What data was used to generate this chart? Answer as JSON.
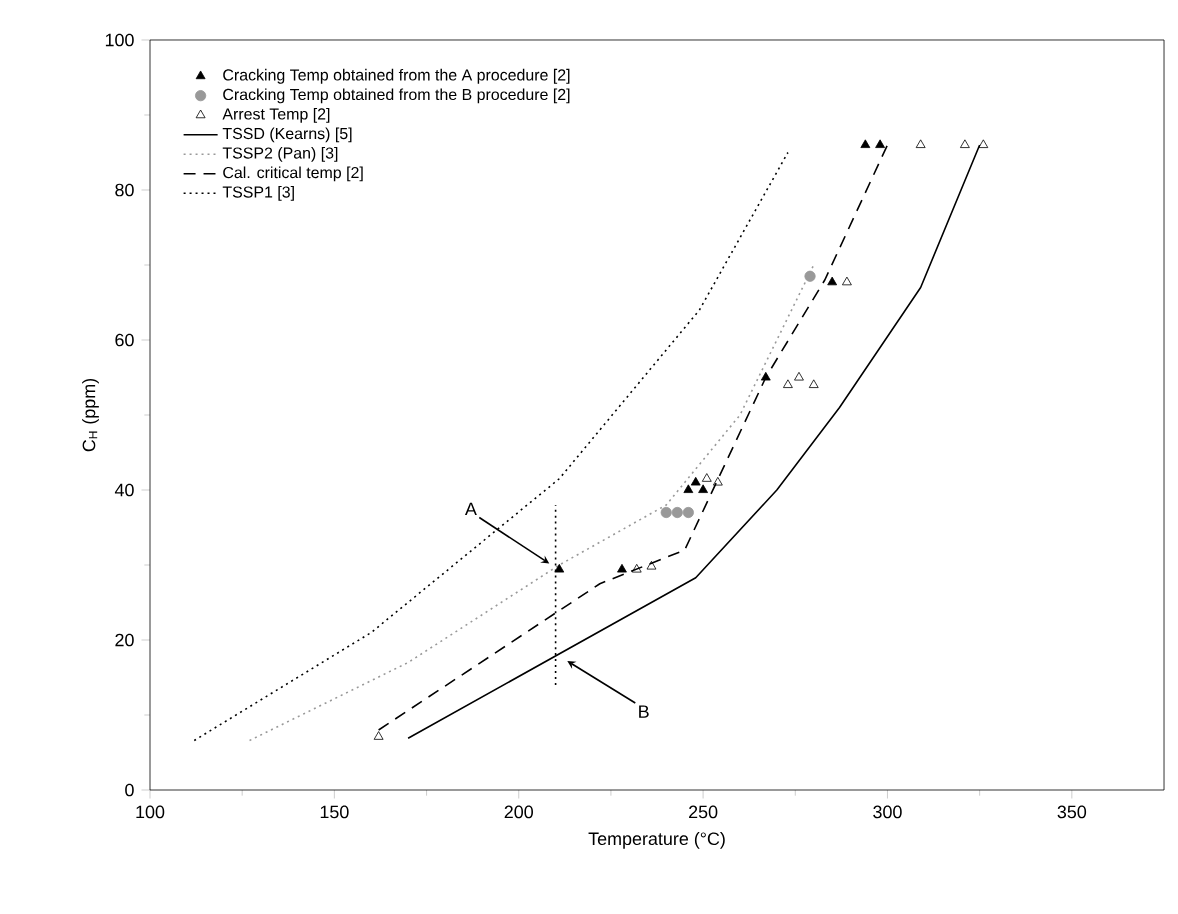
{
  "chart_data": {
    "type": "scatter",
    "xlabel": "Temperature (°C)",
    "ylabel": "C$_{H}$ (ppm)",
    "xlim": [
      100,
      375
    ],
    "ylim": [
      0,
      100
    ],
    "xticks": [
      100,
      150,
      200,
      250,
      300,
      350
    ],
    "yticks": [
      0,
      20,
      40,
      60,
      80,
      100
    ],
    "grid": false,
    "legend": "top left",
    "series": [
      {
        "name": "Cracking Temp obtained from the A procedure [2]",
        "marker": "triangle",
        "color": "#000000",
        "x": [
          211,
          228,
          246,
          248,
          250,
          267,
          285,
          294,
          298
        ],
        "values": [
          29.4,
          29.4,
          40,
          41,
          40,
          55,
          67.7,
          86,
          86
        ]
      },
      {
        "name": "Cracking Temp obtained from the B procedure [2]",
        "marker": "circle",
        "color": "#999999",
        "x": [
          240,
          243,
          246,
          279
        ],
        "values": [
          37,
          37,
          37,
          68.5
        ]
      },
      {
        "name": "Arrest Temp [2]",
        "marker": "triangle",
        "color": "#000000",
        "x": [
          162,
          232,
          236,
          251,
          254,
          273,
          276,
          280,
          289,
          309,
          321,
          326
        ],
        "values": [
          7.1,
          29.4,
          29.8,
          41.5,
          41,
          54,
          55,
          54,
          67.7,
          86,
          86,
          86
        ]
      },
      {
        "name": "TSSD (Kearns) [5]",
        "type": "line",
        "line_style": "solid",
        "color": "#000000",
        "x": [
          170,
          248,
          270,
          287,
          309,
          325
        ],
        "values": [
          6.9,
          28.3,
          40,
          51,
          67,
          86
        ]
      },
      {
        "name": "TSSP2 (Pan) [3]",
        "type": "line",
        "line_style": "dotted",
        "color": "#999999",
        "x": [
          127,
          170,
          211,
          240,
          260,
          280
        ],
        "values": [
          6.6,
          17,
          30,
          38,
          50,
          70
        ]
      },
      {
        "name": "Cal. critical temp [2]",
        "type": "line",
        "line_style": "dashed",
        "color": "#000000",
        "x": [
          162,
          222,
          245,
          267,
          283,
          300
        ],
        "values": [
          8,
          27.5,
          32,
          55,
          68,
          86
        ]
      },
      {
        "name": "TSSP1 [3]",
        "type": "line",
        "line_style": "dotted",
        "color": "#000000",
        "x": [
          112,
          160,
          211,
          249,
          273
        ],
        "values": [
          6.6,
          21,
          41.5,
          64,
          85
        ]
      },
      {
        "type": "line",
        "line_style": "dotted",
        "color": "#000000",
        "x": [
          210,
          210
        ],
        "values": [
          14,
          38
        ]
      }
    ],
    "annotations": [
      {
        "text": "A",
        "x": 211,
        "y": 29.4
      },
      {
        "text": "B",
        "x": 211,
        "y": 18
      }
    ]
  }
}
